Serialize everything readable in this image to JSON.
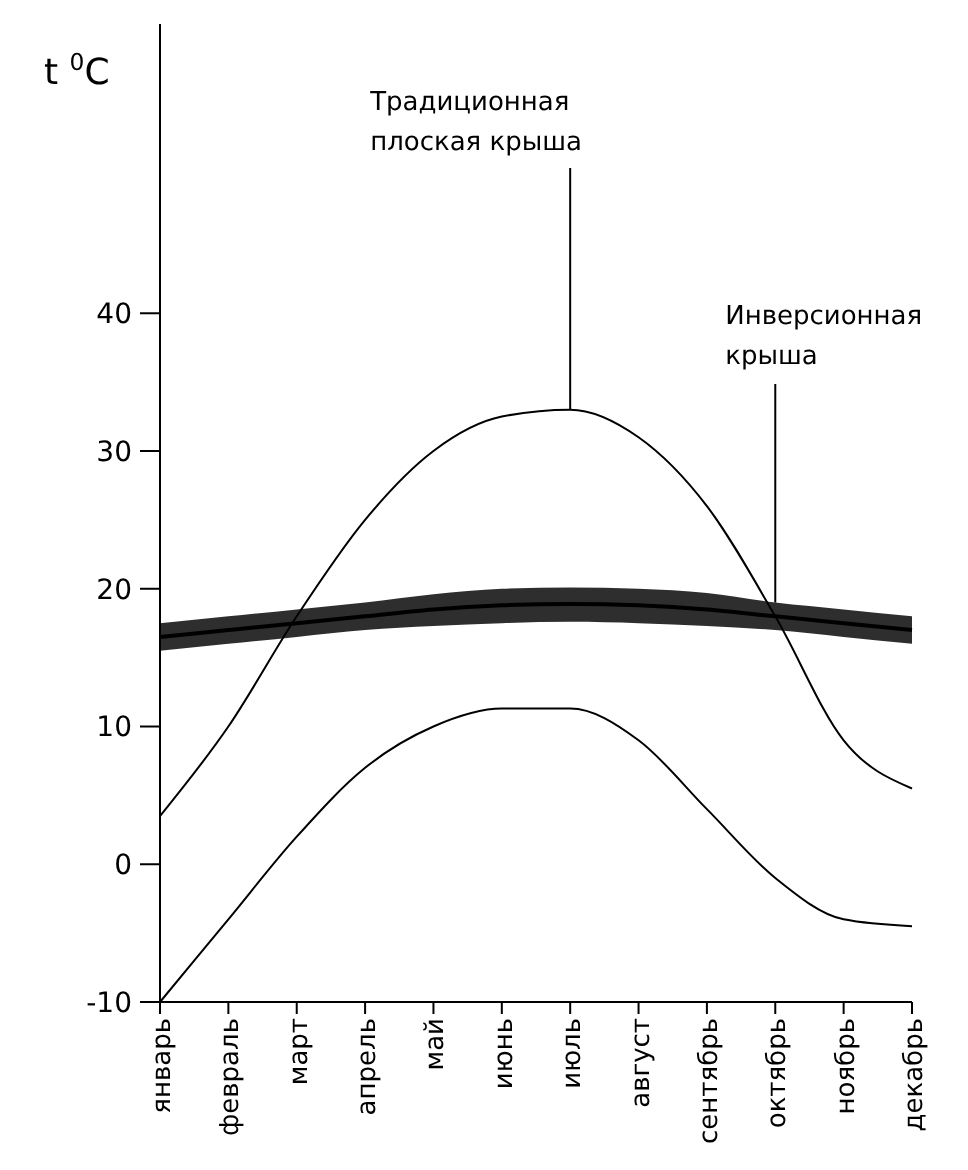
{
  "chart_data": {
    "type": "line",
    "ylabel": "t $^{0}$C",
    "categories": [
      "январь",
      "февраль",
      "март",
      "апрель",
      "май",
      "июнь",
      "июль",
      "август",
      "сентябрь",
      "октябрь",
      "ноябрь",
      "декабрь"
    ],
    "ylim": [
      -10,
      61
    ],
    "yticks": [
      -10,
      0,
      10,
      20,
      30,
      40
    ],
    "grid": false,
    "marker": "none",
    "line_style": "solid",
    "series": [
      {
        "color": "#000000",
        "values": [
          3.5,
          10,
          18,
          25,
          30,
          32.5,
          33,
          31,
          26,
          18,
          9,
          5.5
        ]
      },
      {
        "color": "#000000",
        "values": [
          -10,
          -4,
          2,
          7,
          10,
          11.3,
          11.3,
          9,
          4,
          -1,
          -4,
          -4.5
        ]
      },
      {
        "color": "#000000",
        "values": [
          16.5,
          17,
          17.5,
          18,
          18.5,
          18.8,
          18.9,
          18.8,
          18.5,
          18,
          17.5,
          17
        ],
        "lower": [
          15.5,
          16,
          16.5,
          17,
          17.3,
          17.5,
          17.6,
          17.5,
          17.3,
          17,
          16.5,
          16
        ],
        "upper": [
          17.5,
          18,
          18.5,
          19,
          19.6,
          20,
          20.1,
          20,
          19.7,
          19,
          18.5,
          18
        ]
      }
    ],
    "annotations": [
      {
        "text": "Традиционная плоская крыша",
        "x": "июль",
        "y": 33
      },
      {
        "text": "Инверсионная крыша",
        "x": "октябрь",
        "y": 19
      }
    ]
  }
}
